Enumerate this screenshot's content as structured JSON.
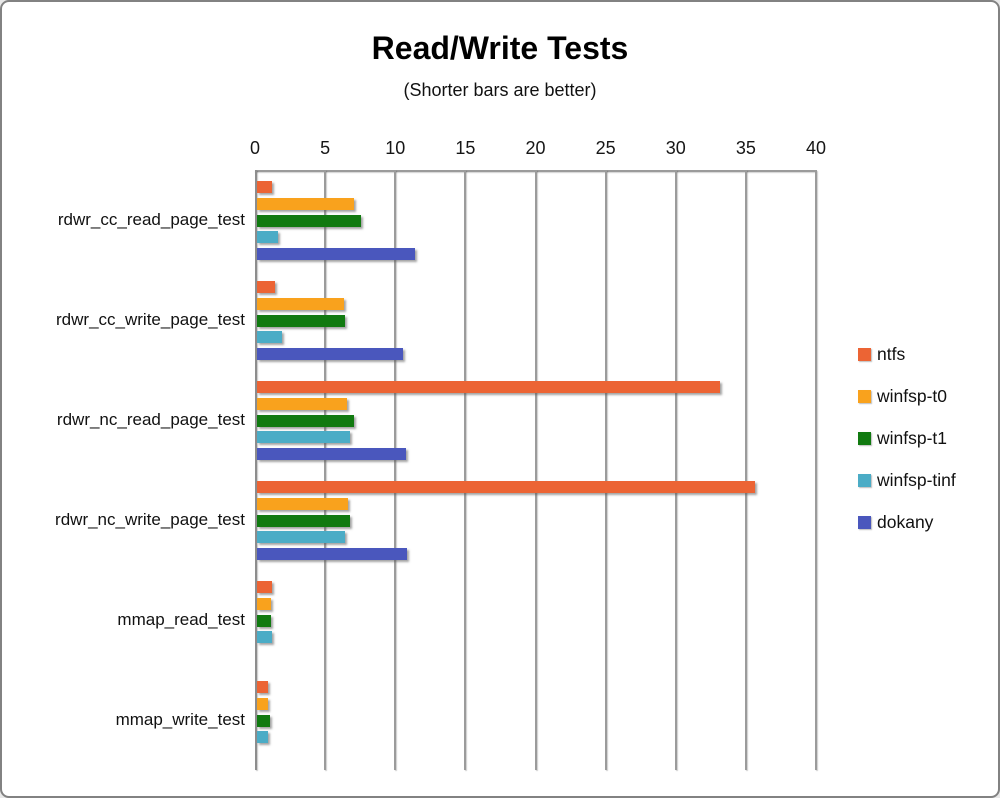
{
  "window": {
    "background": "#ffffff",
    "frame_border_color": "#828282"
  },
  "chart_data": {
    "type": "bar",
    "orientation": "horizontal",
    "title": "Read/Write Tests",
    "subtitle": "(Shorter bars are better)",
    "categories": [
      "rdwr_cc_read_page_test",
      "rdwr_cc_write_page_test",
      "rdwr_nc_read_page_test",
      "rdwr_nc_write_page_test",
      "mmap_read_test",
      "mmap_write_test"
    ],
    "series": [
      {
        "name": "ntfs",
        "color": "#EC6434",
        "values": [
          1.1,
          1.3,
          33.0,
          35.5,
          1.1,
          0.8
        ]
      },
      {
        "name": "winfsp-t0",
        "color": "#F9A21D",
        "values": [
          6.9,
          6.2,
          6.4,
          6.5,
          1.0,
          0.8
        ]
      },
      {
        "name": "winfsp-t1",
        "color": "#117A10",
        "values": [
          7.4,
          6.3,
          6.9,
          6.6,
          1.0,
          0.9
        ]
      },
      {
        "name": "winfsp-tinf",
        "color": "#4BACC6",
        "values": [
          1.5,
          1.8,
          6.6,
          6.3,
          1.1,
          0.8
        ]
      },
      {
        "name": "dokany",
        "color": "#4A57BD",
        "values": [
          11.3,
          10.4,
          10.6,
          10.7,
          0,
          0
        ]
      }
    ],
    "x_ticks": [
      0,
      5,
      10,
      15,
      20,
      25,
      30,
      35,
      40
    ],
    "xlim": [
      0,
      40
    ],
    "grid": "vertical-only",
    "grid_color": "#9b9b9b",
    "axis_color": "#8d8d8d",
    "legend_position": "right",
    "value_axis_position": "top"
  }
}
